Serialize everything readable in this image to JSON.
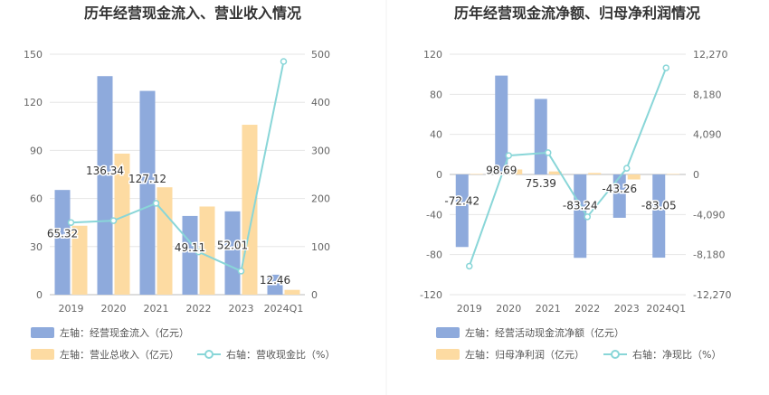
{
  "chart_data": [
    {
      "type": "bar",
      "title": "历年经营现金流入、营业收入情况",
      "categories": [
        "2019",
        "2020",
        "2021",
        "2022",
        "2023",
        "2024Q1"
      ],
      "left_axis": {
        "ticks": [
          "0",
          "30",
          "60",
          "90",
          "120",
          "150"
        ],
        "min": 0,
        "max": 150
      },
      "right_axis": {
        "ticks": [
          "0",
          "100",
          "200",
          "300",
          "400",
          "500"
        ],
        "min": 0,
        "max": 500
      },
      "series": [
        {
          "name": "左轴：经营现金流入（亿元）",
          "axis": "left",
          "type": "bar",
          "color": "#8eaadc",
          "values": [
            65.32,
            136.34,
            127.12,
            49.11,
            52.01,
            12.46
          ],
          "labels": [
            "65.32",
            "136.34",
            "127.12",
            "49.11",
            "52.01",
            "12.46"
          ]
        },
        {
          "name": "左轴：营业总收入（亿元）",
          "axis": "left",
          "type": "bar",
          "color": "#fddba2",
          "values": [
            43,
            88,
            67,
            55,
            106,
            3
          ]
        },
        {
          "name": "右轴：营收现金比（%）",
          "axis": "right",
          "type": "line",
          "color": "#89d6d8",
          "values": [
            150,
            154,
            190,
            89,
            49,
            485
          ]
        }
      ]
    },
    {
      "type": "bar",
      "title": "历年经营现金流净额、归母净利润情况",
      "categories": [
        "2019",
        "2020",
        "2021",
        "2022",
        "2023",
        "2024Q1"
      ],
      "left_axis": {
        "ticks": [
          "-120",
          "-80",
          "-40",
          "0",
          "40",
          "80",
          "120"
        ],
        "min": -120,
        "max": 120
      },
      "right_axis": {
        "ticks": [
          "-12,270",
          "-8,180",
          "-4,090",
          "0",
          "4,090",
          "8,180",
          "12,270"
        ],
        "min": -12270,
        "max": 12270
      },
      "series": [
        {
          "name": "左轴：经营活动现金流净额（亿元）",
          "axis": "left",
          "type": "bar",
          "color": "#8eaadc",
          "values": [
            -72.42,
            98.69,
            75.39,
            -83.24,
            -43.26,
            -83.05
          ],
          "labels": [
            "-72.42",
            "98.69",
            "75.39",
            "-83.24",
            "-43.26",
            "-83.05"
          ]
        },
        {
          "name": "左轴：归母净利润（亿元）",
          "axis": "left",
          "type": "bar",
          "color": "#fddba2",
          "values": [
            0.5,
            5,
            3,
            1.5,
            -5,
            0.5
          ]
        },
        {
          "name": "右轴：净现比（%）",
          "axis": "right",
          "type": "line",
          "color": "#89d6d8",
          "values": [
            -9360,
            1930,
            2220,
            -4320,
            630,
            10880
          ]
        }
      ]
    }
  ]
}
